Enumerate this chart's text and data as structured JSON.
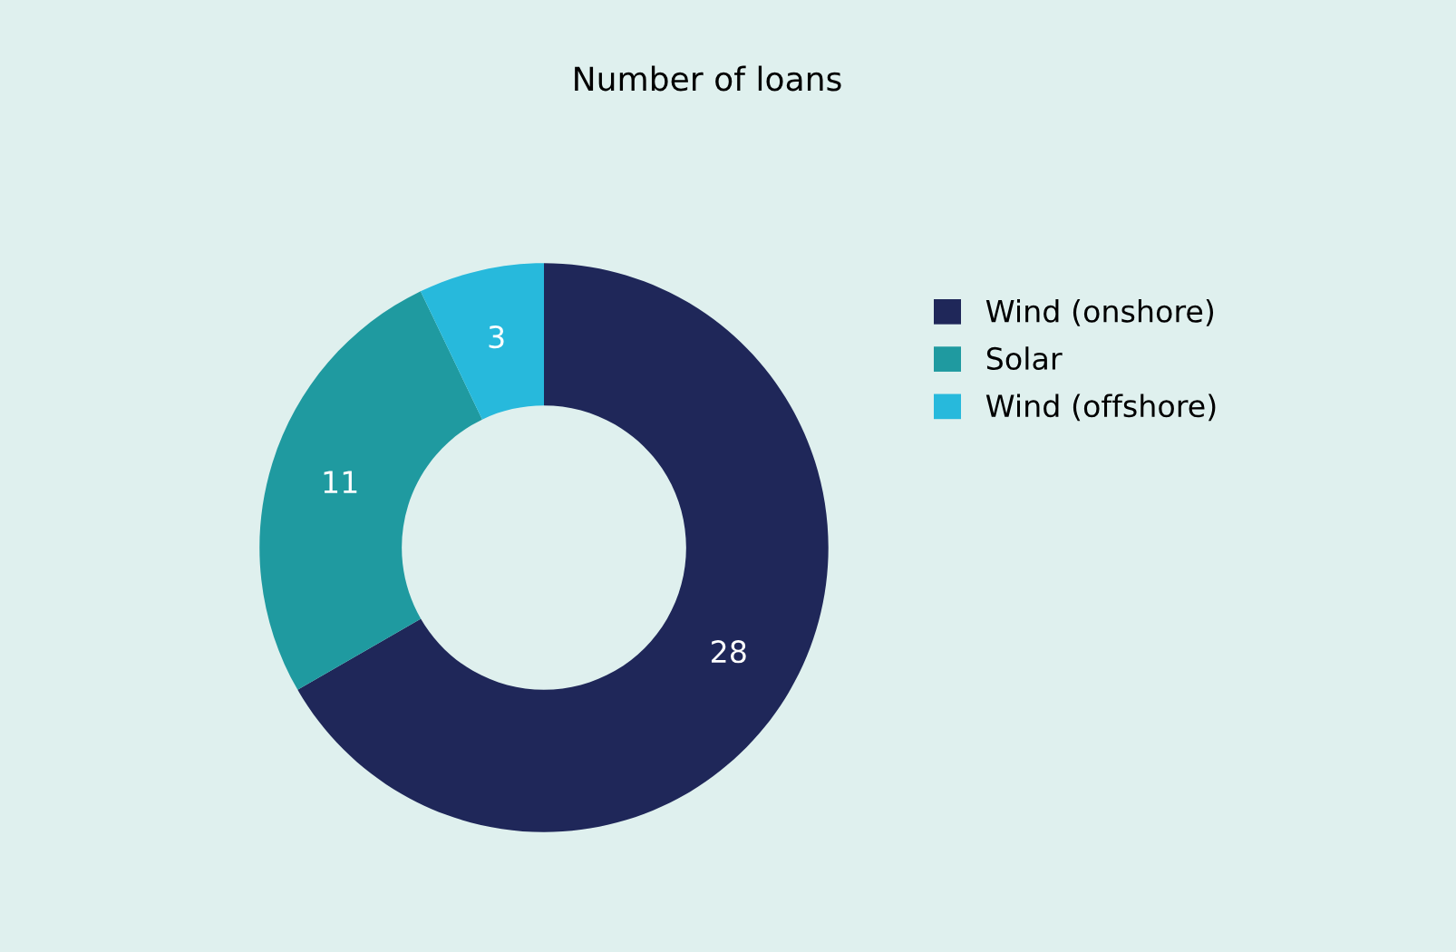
{
  "chart_data": {
    "type": "donut",
    "title": "Number of loans",
    "categories": [
      "Wind (onshore)",
      "Solar",
      "Wind (offshore)"
    ],
    "values": [
      28,
      11,
      3
    ],
    "colors": [
      "#1f2759",
      "#1f9aa0",
      "#27b9dc"
    ],
    "data_labels": true,
    "legend": "right"
  }
}
